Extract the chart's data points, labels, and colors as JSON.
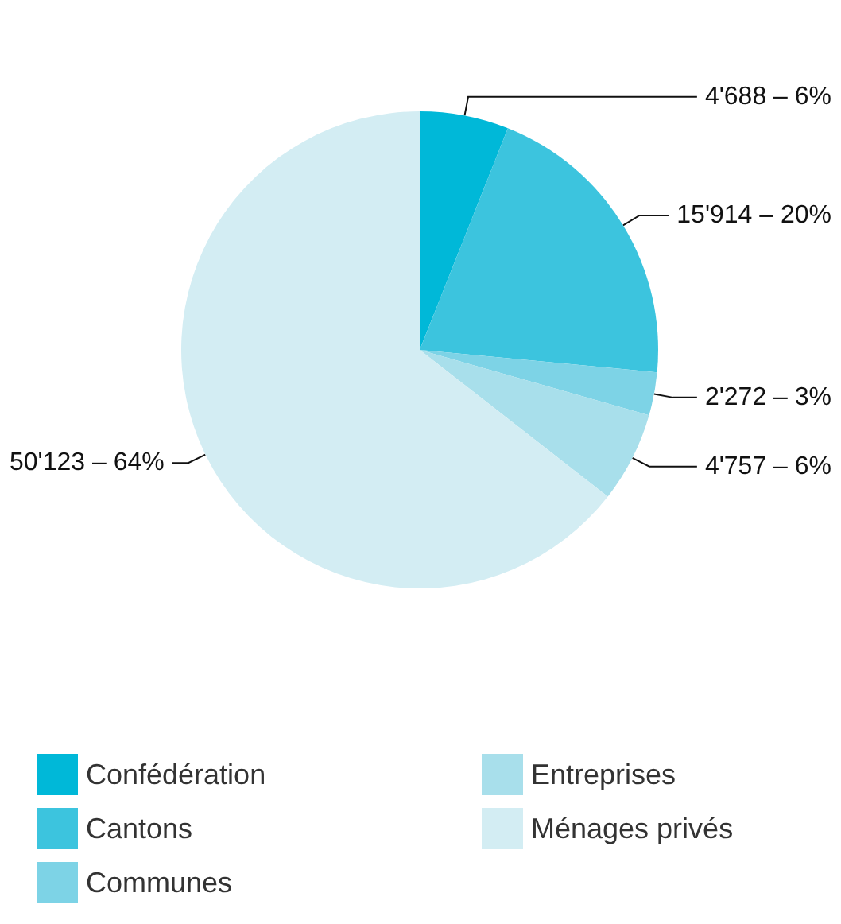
{
  "chart_data": {
    "type": "pie",
    "categories": [
      "Confédération",
      "Cantons",
      "Communes",
      "Entreprises",
      "Ménages privés"
    ],
    "values": [
      4688,
      15914,
      2272,
      4757,
      50123
    ],
    "value_labels": [
      "4'688 – 6%",
      "15'914 – 20%",
      "2'272 – 3%",
      "4'757 – 6%",
      "50'123 – 64%"
    ],
    "colors": [
      "#00b8d8",
      "#3cc4de",
      "#7dd3e6",
      "#a8dfeb",
      "#d3edf3"
    ],
    "legend": "bottom"
  }
}
